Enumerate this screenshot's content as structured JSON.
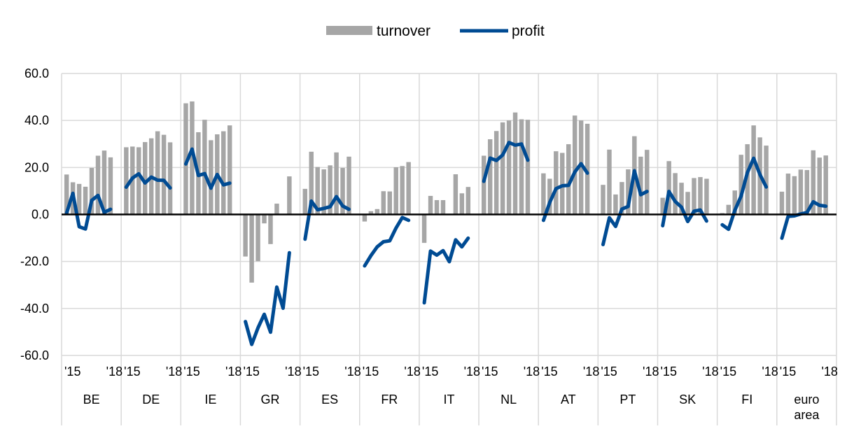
{
  "chart_data": {
    "type": "bar",
    "legend_position": "top-center",
    "grid": true,
    "ylim": [
      -60,
      60
    ],
    "y_ticks": [
      "60.0",
      "40.0",
      "20.0",
      "0.0",
      "-20.0",
      "-40.0",
      "-60.0"
    ],
    "year_labels": [
      "'15",
      "'18"
    ],
    "colors": {
      "turnover": "#a6a6a6",
      "profit": "#004b93",
      "grid": "#d9d9d9",
      "zero_line": "#000000"
    },
    "series": [
      {
        "name": "turnover",
        "kind": "bar"
      },
      {
        "name": "profit",
        "kind": "line"
      }
    ],
    "groups": [
      {
        "label": "BE",
        "turnover": [
          17,
          13.7,
          13,
          11.8,
          19.8,
          25,
          27.2,
          24.3
        ],
        "profit": [
          0.6,
          9,
          -5.2,
          -6.2,
          6,
          8.1,
          0.9,
          2.2
        ]
      },
      {
        "label": "DE",
        "turnover": [
          28.6,
          28.9,
          28.6,
          30.8,
          32.4,
          35.4,
          33.9,
          30.7
        ],
        "profit": [
          11.6,
          15.5,
          17.3,
          13.4,
          15.9,
          14.6,
          14.5,
          11.3
        ]
      },
      {
        "label": "IE",
        "turnover": [
          47.3,
          48.1,
          35,
          40.3,
          31.6,
          34.1,
          35.4,
          37.9
        ],
        "profit": [
          21.5,
          27.8,
          16.6,
          17.4,
          11.2,
          17,
          12.6,
          13.3
        ]
      },
      {
        "label": "GR",
        "turnover": [
          -17.9,
          -29,
          -19.9,
          -3.8,
          -12.6,
          4.6,
          0,
          16.2
        ],
        "profit": [
          -45.6,
          -55.3,
          -48.3,
          -42.5,
          -50.1,
          -30.9,
          -39.9,
          -16.3
        ]
      },
      {
        "label": "ES",
        "turnover": [
          10.9,
          26.7,
          20.2,
          19.2,
          20.9,
          26.4,
          19.8,
          24.6
        ],
        "profit": [
          -10.5,
          5.7,
          2,
          2.6,
          3.3,
          7.6,
          3.6,
          2.2
        ]
      },
      {
        "label": "FR",
        "turnover": [
          -3,
          1.4,
          2.3,
          9.9,
          9.8,
          20.1,
          20.6,
          22.3
        ],
        "profit": [
          -21.9,
          -17.5,
          -13.8,
          -11.6,
          -11.2,
          -5.8,
          -1.3,
          -2.5
        ]
      },
      {
        "label": "IT",
        "turnover": [
          -12.1,
          7.9,
          6.1,
          6.1,
          0,
          17.1,
          9,
          11.7
        ],
        "profit": [
          -37.6,
          -15.6,
          -17.3,
          -15.4,
          -20.1,
          -10.8,
          -13.8,
          -10.1
        ]
      },
      {
        "label": "NL",
        "turnover": [
          25,
          32,
          35.5,
          39.2,
          40,
          43.4,
          40.5,
          40.3
        ],
        "profit": [
          14.1,
          24,
          23,
          25.3,
          30.6,
          29.5,
          30,
          23.1
        ]
      },
      {
        "label": "AT",
        "turnover": [
          17.5,
          15.2,
          26.9,
          26.2,
          29.9,
          42.1,
          40,
          38.6
        ],
        "profit": [
          -2.5,
          5.1,
          11,
          12.2,
          12.4,
          18.1,
          21.6,
          17.6
        ]
      },
      {
        "label": "PT",
        "turnover": [
          12.6,
          27.6,
          8.5,
          13.8,
          19.2,
          33.3,
          24.6,
          27.5
        ],
        "profit": [
          -12.8,
          -1.4,
          -5.1,
          2.3,
          3.4,
          18.6,
          8.4,
          9.8
        ]
      },
      {
        "label": "SK",
        "turnover": [
          7.1,
          22.7,
          17.6,
          13.5,
          9.6,
          15.5,
          15.9,
          15.2
        ],
        "profit": [
          -4.8,
          9.8,
          5.5,
          3.1,
          -3,
          1.4,
          1.9,
          -2.8
        ]
      },
      {
        "label": "FI",
        "turnover": [
          0.6,
          4.1,
          10.2,
          25.4,
          29.9,
          37.9,
          32.8,
          29.3
        ],
        "profit": [
          -4.4,
          -6.3,
          1.7,
          7.8,
          17.8,
          23.9,
          17,
          11.7
        ]
      },
      {
        "label": [
          "euro",
          "area"
        ],
        "turnover": [
          9.7,
          17.4,
          16.3,
          19.1,
          18.9,
          27.3,
          24.2,
          25.1
        ],
        "profit": [
          -10.1,
          -0.8,
          -0.6,
          0.2,
          0.8,
          5.4,
          3.9,
          3.5
        ]
      }
    ]
  }
}
